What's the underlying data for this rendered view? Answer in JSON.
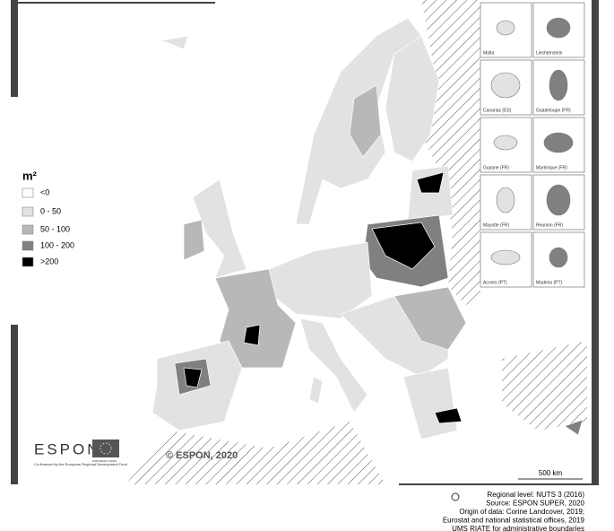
{
  "legend": {
    "title": "m²",
    "items": [
      {
        "label": "<0",
        "color": "#ffffff"
      },
      {
        "label": "0 - 50",
        "color": "#e2e2e2"
      },
      {
        "label": "50 - 100",
        "color": "#b8b8b8"
      },
      {
        "label": "100 - 200",
        "color": "#808080"
      },
      {
        "label": ">200",
        "color": "#000000"
      }
    ]
  },
  "insets": [
    "Malta",
    "Liechtenstein",
    "Canarias (ES)",
    "Guadeloupe (FR)",
    "Guyane (FR)",
    "Martinique (FR)",
    "Mayotte (FR)",
    "Reunion (FR)",
    "Acores (PT)",
    "Madeira (PT)"
  ],
  "copyright": "© ESPON, 2020",
  "scale_label": "500 km",
  "logo": {
    "name": "ESPON",
    "eu": "EUROPEAN UNION",
    "funding": "Co-financed by the European Regional Development Fund"
  },
  "source": [
    "Regional level: NUTS 3 (2016)",
    "Source: ESPON SUPER, 2020",
    "Origin of data: Corine Landcover, 2019;",
    "Eurostat and national statistical offices, 2019",
    "UMS RIATE for administrative boundaries"
  ]
}
